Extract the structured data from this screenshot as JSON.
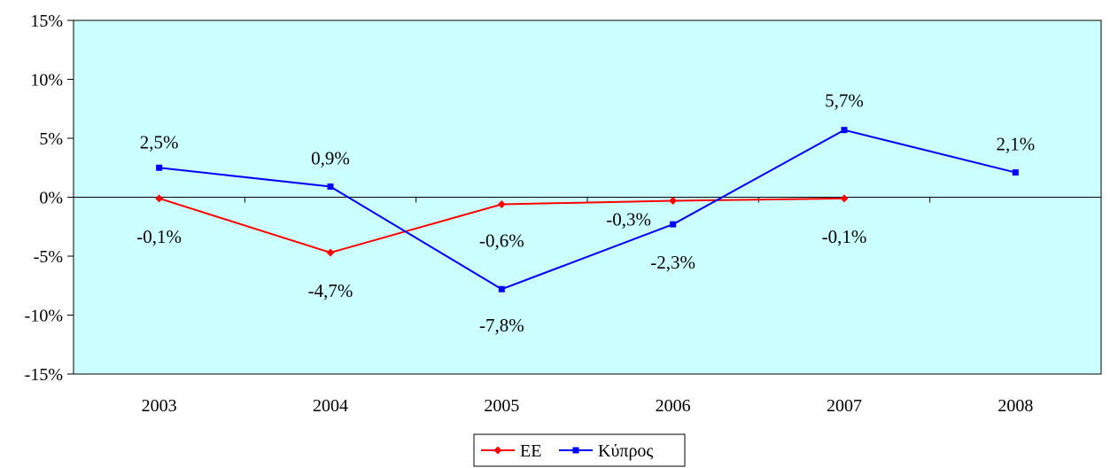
{
  "chart_data": {
    "type": "line",
    "title": "",
    "xlabel": "",
    "ylabel": "",
    "categories": [
      "2003",
      "2004",
      "2005",
      "2006",
      "2007",
      "2008"
    ],
    "ylim": [
      -15,
      15
    ],
    "yticks": [
      -15,
      -10,
      -5,
      0,
      5,
      10,
      15
    ],
    "ytick_labels": [
      "-15%",
      "-10%",
      "-5%",
      "0%",
      "5%",
      "10%",
      "15%"
    ],
    "grid": false,
    "plot_background": "#CCFFFF",
    "legend_position": "bottom-center",
    "series": [
      {
        "name": "ΕΕ",
        "color": "#FF0000",
        "marker": "diamond",
        "values": [
          -0.1,
          -4.7,
          -0.6,
          -0.3,
          -0.1,
          null
        ],
        "labels": [
          "-0,1%",
          "-4,7%",
          "-0,6%",
          "-0,3%",
          "-0,1%",
          null
        ]
      },
      {
        "name": "Κύπρος",
        "color": "#0000FF",
        "marker": "square",
        "values": [
          2.5,
          0.9,
          -7.8,
          -2.3,
          5.7,
          2.1
        ],
        "labels": [
          "2,5%",
          "0,9%",
          "-7,8%",
          "-2,3%",
          "5,7%",
          "2,1%"
        ]
      }
    ]
  }
}
